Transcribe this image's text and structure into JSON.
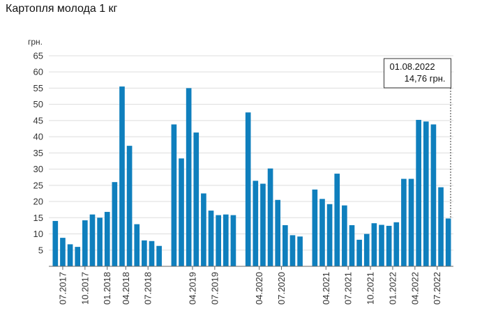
{
  "chart_data": {
    "type": "bar",
    "title": "Картопля молода 1 кг",
    "ylabel": "грн.",
    "xlabel": "",
    "ylim": [
      0,
      68
    ],
    "yticks": [
      5,
      10,
      15,
      20,
      25,
      30,
      35,
      40,
      45,
      50,
      55,
      60,
      65
    ],
    "grid": true,
    "color": "#0f7fbd",
    "values": [
      14,
      8.8,
      6.8,
      6,
      14.2,
      16,
      15,
      16.8,
      26,
      55.5,
      37.2,
      13,
      8,
      7.8,
      6.3,
      null,
      43.8,
      33.3,
      55,
      41.3,
      22.5,
      17.2,
      15.8,
      16,
      15.8,
      null,
      47.5,
      26.4,
      25.5,
      30.2,
      20.5,
      12.7,
      9.6,
      9.2,
      null,
      23.7,
      20.8,
      19.2,
      28.6,
      18.8,
      12.7,
      8.2,
      10,
      13.3,
      12.8,
      12.5,
      13.6,
      27,
      27,
      45.2,
      44.7,
      43.8,
      24.4,
      14.76
    ],
    "x_tick_labels": [
      {
        "index": 1,
        "label": "07.2017"
      },
      {
        "index": 4,
        "label": "10.2017"
      },
      {
        "index": 7,
        "label": "01.2018"
      },
      {
        "index": 9.5,
        "label": "04.2018"
      },
      {
        "index": 12.5,
        "label": "07.2018"
      },
      {
        "index": 18.5,
        "label": "04.2019"
      },
      {
        "index": 21.5,
        "label": "07.2019"
      },
      {
        "index": 27.5,
        "label": "04.2020"
      },
      {
        "index": 30.5,
        "label": "07.2020"
      },
      {
        "index": 36.5,
        "label": "04.2021"
      },
      {
        "index": 39.5,
        "label": "07.2021"
      },
      {
        "index": 42.5,
        "label": "10.2021"
      },
      {
        "index": 45.5,
        "label": "01.2022"
      },
      {
        "index": 48.5,
        "label": "04.2022"
      },
      {
        "index": 51.5,
        "label": "07.2022"
      }
    ],
    "annotation": {
      "date": "01.08.2022",
      "value_text": "14,76 грн.",
      "bar_index": 53
    }
  }
}
